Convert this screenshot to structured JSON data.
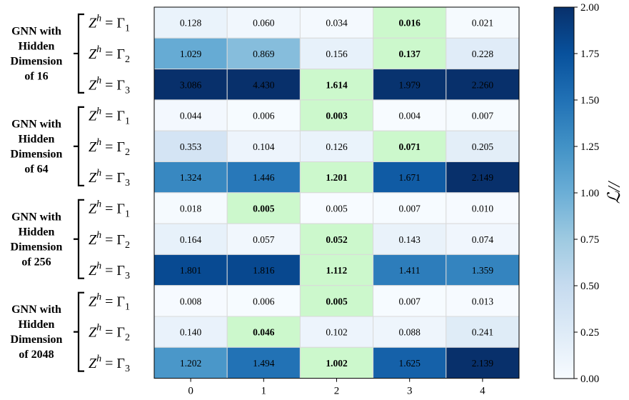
{
  "chart_data": {
    "type": "heatmap",
    "x_ticks": [
      "0",
      "1",
      "2",
      "3",
      "4"
    ],
    "groups": [
      {
        "label_lines": [
          "GNN with",
          "Hidden",
          "Dimension",
          "of 16"
        ],
        "rows": [
          {
            "label": "Z^h = Γ_1",
            "values": [
              "0.128",
              "0.060",
              "0.034",
              "0.016",
              "0.021"
            ],
            "best_index": 3
          },
          {
            "label": "Z^h = Γ_2",
            "values": [
              "1.029",
              "0.869",
              "0.156",
              "0.137",
              "0.228"
            ],
            "best_index": 3
          },
          {
            "label": "Z^h = Γ_3",
            "values": [
              "3.086",
              "4.430",
              "1.614",
              "1.979",
              "2.260"
            ],
            "best_index": 2
          }
        ]
      },
      {
        "label_lines": [
          "GNN with",
          "Hidden",
          "Dimension",
          "of 64"
        ],
        "rows": [
          {
            "label": "Z^h = Γ_1",
            "values": [
              "0.044",
              "0.006",
              "0.003",
              "0.004",
              "0.007"
            ],
            "best_index": 2
          },
          {
            "label": "Z^h = Γ_2",
            "values": [
              "0.353",
              "0.104",
              "0.126",
              "0.071",
              "0.205"
            ],
            "best_index": 3
          },
          {
            "label": "Z^h = Γ_3",
            "values": [
              "1.324",
              "1.446",
              "1.201",
              "1.671",
              "2.149"
            ],
            "best_index": 2
          }
        ]
      },
      {
        "label_lines": [
          "GNN with",
          "Hidden",
          "Dimension",
          "of 256"
        ],
        "rows": [
          {
            "label": "Z^h = Γ_1",
            "values": [
              "0.018",
              "0.005",
              "0.005",
              "0.007",
              "0.010"
            ],
            "best_index": 1
          },
          {
            "label": "Z^h = Γ_2",
            "values": [
              "0.164",
              "0.057",
              "0.052",
              "0.143",
              "0.074"
            ],
            "best_index": 2
          },
          {
            "label": "Z^h = Γ_3",
            "values": [
              "1.801",
              "1.816",
              "1.112",
              "1.411",
              "1.359"
            ],
            "best_index": 2
          }
        ]
      },
      {
        "label_lines": [
          "GNN with",
          "Hidden",
          "Dimension",
          "of 2048"
        ],
        "rows": [
          {
            "label": "Z^h = Γ_1",
            "values": [
              "0.008",
              "0.006",
              "0.005",
              "0.007",
              "0.013"
            ],
            "best_index": 2
          },
          {
            "label": "Z^h = Γ_2",
            "values": [
              "0.140",
              "0.046",
              "0.102",
              "0.088",
              "0.241"
            ],
            "best_index": 1
          },
          {
            "label": "Z^h = Γ_3",
            "values": [
              "1.202",
              "1.494",
              "1.002",
              "1.625",
              "2.139"
            ],
            "best_index": 2
          }
        ]
      }
    ],
    "colorbar": {
      "min": 0,
      "max": 2,
      "ticks": [
        "0.00",
        "0.25",
        "0.50",
        "0.75",
        "1.00",
        "1.25",
        "1.50",
        "1.75",
        "2.00"
      ],
      "label": "ℒ//",
      "colormap": "Blues"
    },
    "highlight_color": "#ccf8cc"
  }
}
